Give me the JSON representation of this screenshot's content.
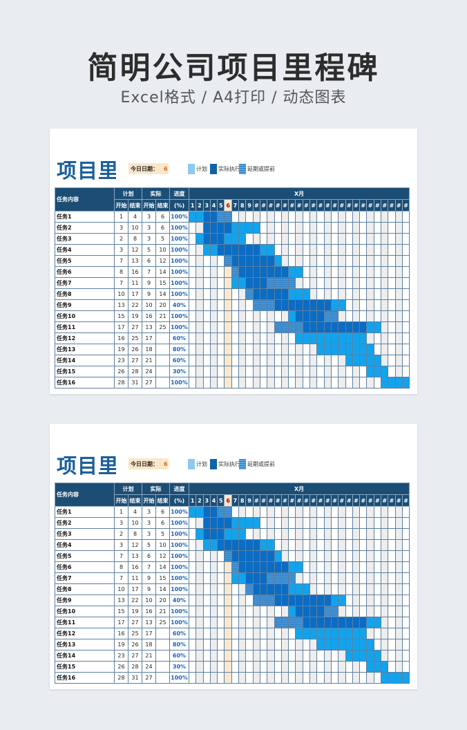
{
  "page": {
    "title": "简明公司项目里程碑",
    "subtitle": "Excel格式 / A4打印 / 动态图表"
  },
  "sheet": {
    "title": "项目里程",
    "today_label": "今日日期：",
    "today_value": "6",
    "legend": {
      "plan": "计划",
      "actual": "实际执行",
      "delay": "延期或提前"
    },
    "header": {
      "task": "任务内容",
      "plan": "计划",
      "actual": "实际",
      "progress": "进度",
      "start": "开始",
      "end": "结束",
      "percent_unit": "(%)",
      "month": "X月"
    },
    "day_labels": [
      "1",
      "2",
      "3",
      "4",
      "5",
      "6",
      "7",
      "8",
      "9",
      "#",
      "#",
      "#",
      "#",
      "#",
      "#",
      "#",
      "#",
      "#",
      "#",
      "#",
      "#",
      "#",
      "#",
      "#",
      "#",
      "#",
      "#",
      "#",
      "#",
      "#",
      "#"
    ],
    "today_day": 6,
    "tasks": [
      {
        "name": "任务1",
        "plan_start": "1",
        "plan_end": "4",
        "actual_start": "3",
        "actual_end": "6",
        "progress": "100%"
      },
      {
        "name": "任务2",
        "plan_start": "3",
        "plan_end": "10",
        "actual_start": "3",
        "actual_end": "6",
        "progress": "100%"
      },
      {
        "name": "任务3",
        "plan_start": "2",
        "plan_end": "8",
        "actual_start": "3",
        "actual_end": "5",
        "progress": "100%"
      },
      {
        "name": "任务4",
        "plan_start": "3",
        "plan_end": "12",
        "actual_start": "5",
        "actual_end": "10",
        "progress": "100%"
      },
      {
        "name": "任务5",
        "plan_start": "7",
        "plan_end": "13",
        "actual_start": "6",
        "actual_end": "12",
        "progress": "100%"
      },
      {
        "name": "任务6",
        "plan_start": "8",
        "plan_end": "16",
        "actual_start": "7",
        "actual_end": "14",
        "progress": "100%"
      },
      {
        "name": "任务7",
        "plan_start": "7",
        "plan_end": "11",
        "actual_start": "9",
        "actual_end": "15",
        "progress": "100%"
      },
      {
        "name": "任务8",
        "plan_start": "10",
        "plan_end": "17",
        "actual_start": "9",
        "actual_end": "14",
        "progress": "100%"
      },
      {
        "name": "任务9",
        "plan_start": "13",
        "plan_end": "22",
        "actual_start": "10",
        "actual_end": "20",
        "progress": "40%"
      },
      {
        "name": "任务10",
        "plan_start": "15",
        "plan_end": "19",
        "actual_start": "16",
        "actual_end": "21",
        "progress": "100%"
      },
      {
        "name": "任务11",
        "plan_start": "17",
        "plan_end": "27",
        "actual_start": "13",
        "actual_end": "25",
        "progress": "100%"
      },
      {
        "name": "任务12",
        "plan_start": "16",
        "plan_end": "25",
        "actual_start": "17",
        "actual_end": "",
        "progress": "60%"
      },
      {
        "name": "任务13",
        "plan_start": "19",
        "plan_end": "26",
        "actual_start": "18",
        "actual_end": "",
        "progress": "80%"
      },
      {
        "name": "任务14",
        "plan_start": "23",
        "plan_end": "27",
        "actual_start": "21",
        "actual_end": "",
        "progress": "60%"
      },
      {
        "name": "任务15",
        "plan_start": "26",
        "plan_end": "28",
        "actual_start": "24",
        "actual_end": "",
        "progress": "30%"
      },
      {
        "name": "任务16",
        "plan_start": "28",
        "plan_end": "31",
        "actual_start": "27",
        "actual_end": "",
        "progress": "100%"
      }
    ]
  },
  "colors": {
    "header_bg": "#1c4e75",
    "plan": "#13a3ec",
    "actual": "#0b6cc4",
    "today_highlight": "#fbe9cf",
    "title_blue": "#1a5f9a"
  }
}
